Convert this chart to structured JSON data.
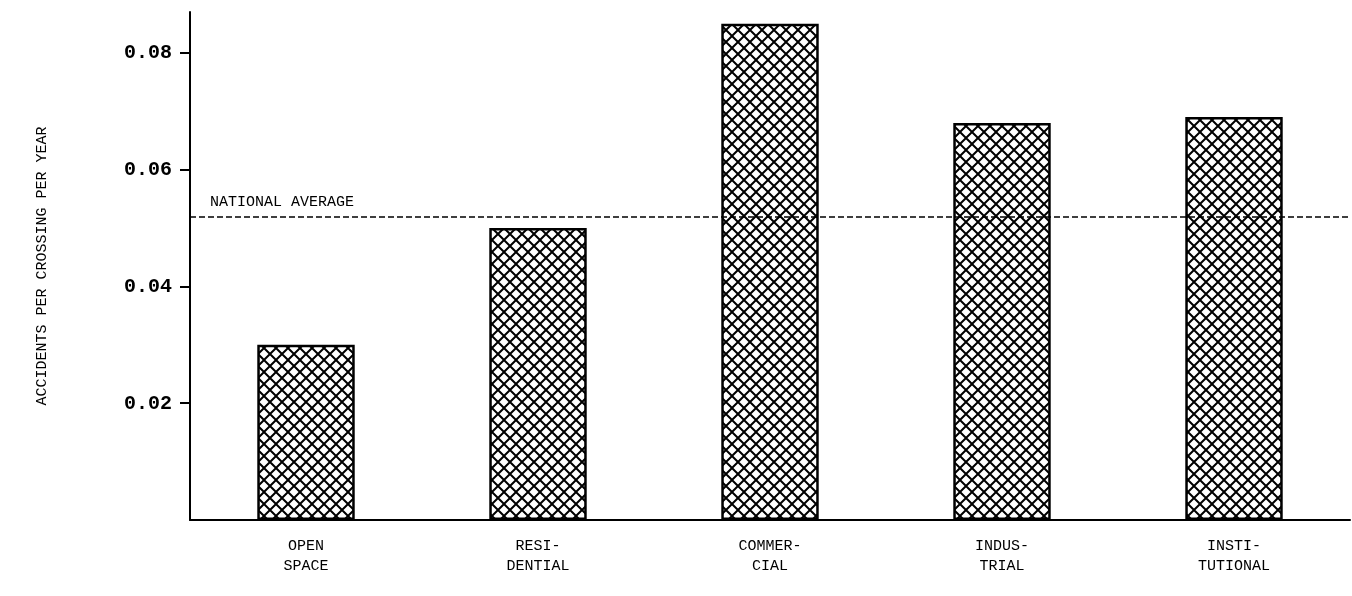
{
  "chart_data": {
    "type": "bar",
    "ylabel": "ACCIDENTS PER CROSSING PER YEAR",
    "categories": [
      "OPEN\nSPACE",
      "RESI-\nDENTIAL",
      "COMMER-\nCIAL",
      "INDUS-\nTRIAL",
      "INSTI-\nTUTIONAL"
    ],
    "values": [
      0.03,
      0.05,
      0.085,
      0.068,
      0.069
    ],
    "color": "#000000",
    "ylim": [
      0,
      0.087
    ],
    "yticks": [
      0.02,
      0.04,
      0.06,
      0.08
    ],
    "grid": false,
    "ref_lines": [
      {
        "axis": "y",
        "value": 0.052,
        "label": "NATIONAL AVERAGE",
        "line_style": "dashed",
        "color": "#000000"
      }
    ]
  }
}
